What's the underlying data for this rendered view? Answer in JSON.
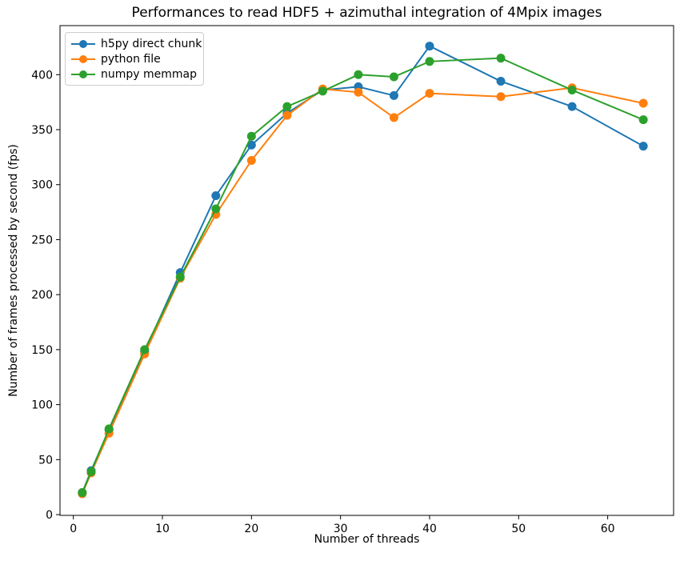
{
  "figure": {
    "background": "#ffffff",
    "axis_color": "#000000",
    "legend_border_color": "#cccccc"
  },
  "chart_data": {
    "type": "line",
    "title": "Performances to read HDF5 + azimuthal integration of 4Mpix images",
    "xlabel": "Number of threads",
    "ylabel": "Number of frames processed by second (fps)",
    "x": [
      1,
      2,
      4,
      8,
      12,
      16,
      20,
      24,
      28,
      32,
      36,
      40,
      48,
      56,
      64
    ],
    "series": [
      {
        "name": "h5py direct chunk",
        "color": "#1f77b4",
        "values": [
          20,
          40,
          77,
          148,
          220,
          290,
          336,
          365,
          386,
          389,
          381,
          426,
          394,
          371,
          335
        ]
      },
      {
        "name": "python file",
        "color": "#ff7f0e",
        "values": [
          19,
          38,
          74,
          146,
          215,
          273,
          322,
          363,
          387,
          384,
          361,
          383,
          380,
          388,
          374
        ]
      },
      {
        "name": "numpy memmap",
        "color": "#2ca02c",
        "values": [
          20,
          39,
          78,
          150,
          216,
          278,
          344,
          371,
          385,
          400,
          398,
          412,
          415,
          386,
          359
        ]
      }
    ],
    "xticks": [
      0,
      10,
      20,
      30,
      40,
      50,
      60
    ],
    "yticks": [
      0,
      50,
      100,
      150,
      200,
      250,
      300,
      350,
      400
    ],
    "xlim": [
      -1.5,
      67.4
    ],
    "ylim": [
      -0.7,
      444.6
    ],
    "grid": false,
    "marker": "circle",
    "legend_position": "upper left"
  }
}
